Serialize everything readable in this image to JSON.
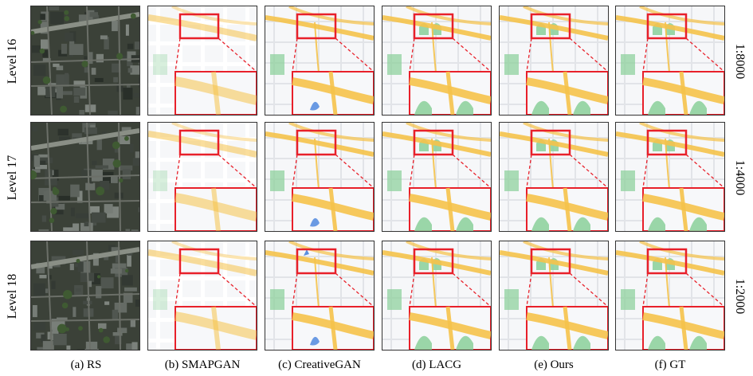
{
  "rows": [
    {
      "label": "Level 16",
      "scale": "1:8000"
    },
    {
      "label": "Level 17",
      "scale": "1:4000"
    },
    {
      "label": "Level 18",
      "scale": "1:2000"
    }
  ],
  "columns": [
    {
      "label": "(a) RS",
      "kind": "satellite"
    },
    {
      "label": "(b) SMAPGAN",
      "kind": "map-blurry"
    },
    {
      "label": "(c) CreativeGAN",
      "kind": "map-creative"
    },
    {
      "label": "(d) LACG",
      "kind": "map-lacg"
    },
    {
      "label": "(e) Ours",
      "kind": "map-ours"
    },
    {
      "label": "(f) GT",
      "kind": "map-gt"
    }
  ],
  "colors": {
    "zoom_box": "#e8202a",
    "road": "#f5c24a",
    "park": "#8fd19e",
    "water": "#5a8fe0",
    "satellite_base": "#3b4138"
  }
}
